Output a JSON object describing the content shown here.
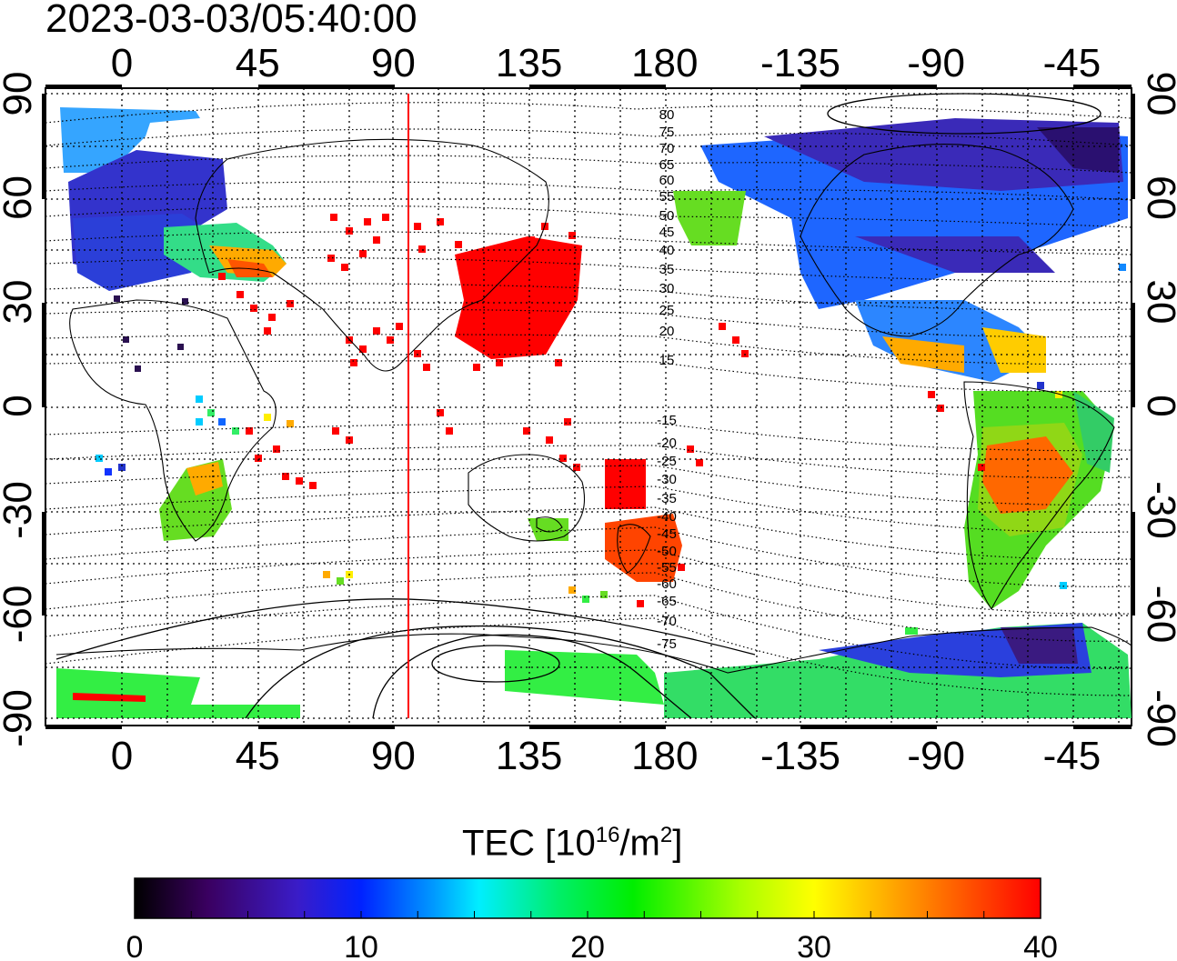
{
  "title": "2023-03-03/05:40:00",
  "map": {
    "top_lon_ticks": [
      "0",
      "45",
      "90",
      "135",
      "180",
      "-135",
      "-90",
      "-45"
    ],
    "bottom_lon_ticks": [
      "0",
      "45",
      "90",
      "135",
      "180",
      "-135",
      "-90",
      "-45"
    ],
    "left_lat_ticks": [
      "90",
      "60",
      "30",
      "0",
      "-30",
      "-60",
      "-90"
    ],
    "right_lat_ticks": [
      "90",
      "60",
      "30",
      "0",
      "-30",
      "-60",
      "-90"
    ],
    "meridian_marker_lon": 95,
    "contour_labels": [
      "80",
      "75",
      "70",
      "65",
      "60",
      "55",
      "50",
      "45",
      "40",
      "35",
      "30",
      "25",
      "20",
      "15",
      "-15",
      "-20",
      "-25",
      "-30",
      "-35",
      "-40",
      "-45",
      "-50",
      "-55",
      "-60",
      "-65",
      "-70",
      "-75"
    ]
  },
  "colorbar": {
    "label_prefix": "TEC  [10",
    "label_exp1": "16",
    "label_mid": "/m",
    "label_exp2": "2",
    "label_suffix": "]",
    "min": 0,
    "max": 40,
    "tick_labels": [
      "0",
      "10",
      "20",
      "30",
      "40"
    ]
  },
  "colors": {
    "meridian_marker": "#ff0000",
    "high_tec": "#ff0000"
  }
}
